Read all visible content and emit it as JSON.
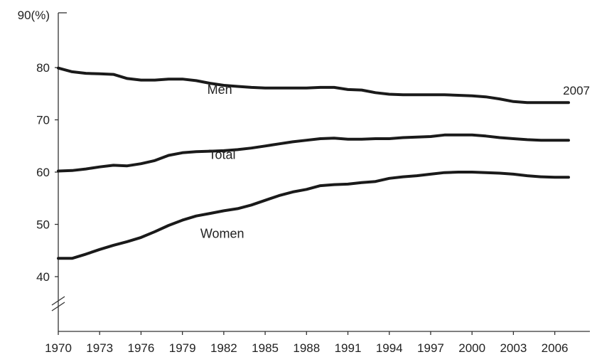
{
  "chart_data": {
    "type": "line",
    "ylabel": "90(%)",
    "ylim": [
      40,
      90
    ],
    "yticks": [
      40,
      50,
      60,
      70,
      80
    ],
    "xlim": [
      1970,
      2007
    ],
    "xticks": [
      "1970",
      "1973",
      "1976",
      "1979",
      "1982",
      "1985",
      "1988",
      "1991",
      "1994",
      "1997",
      "2000",
      "2003",
      "2006"
    ],
    "end_annotation": "2007",
    "grid": false,
    "x": [
      1970,
      1971,
      1972,
      1973,
      1974,
      1975,
      1976,
      1977,
      1978,
      1979,
      1980,
      1981,
      1982,
      1983,
      1984,
      1985,
      1986,
      1987,
      1988,
      1989,
      1990,
      1991,
      1992,
      1993,
      1994,
      1995,
      1996,
      1997,
      1998,
      1999,
      2000,
      2001,
      2002,
      2003,
      2004,
      2005,
      2006,
      2007
    ],
    "series": [
      {
        "name": "Men",
        "values": [
          79.9,
          79.2,
          78.9,
          78.8,
          78.7,
          77.9,
          77.6,
          77.6,
          77.8,
          77.8,
          77.5,
          77.0,
          76.6,
          76.4,
          76.2,
          76.1,
          76.1,
          76.1,
          76.1,
          76.2,
          76.2,
          75.8,
          75.7,
          75.2,
          74.9,
          74.8,
          74.8,
          74.8,
          74.8,
          74.7,
          74.6,
          74.4,
          74.0,
          73.5,
          73.3,
          73.3,
          73.3,
          73.3
        ]
      },
      {
        "name": "Total",
        "values": [
          60.2,
          60.3,
          60.6,
          61.0,
          61.3,
          61.2,
          61.6,
          62.2,
          63.2,
          63.7,
          63.9,
          64.0,
          64.1,
          64.3,
          64.6,
          65.0,
          65.4,
          65.8,
          66.1,
          66.4,
          66.5,
          66.3,
          66.3,
          66.4,
          66.4,
          66.6,
          66.7,
          66.8,
          67.1,
          67.1,
          67.1,
          66.9,
          66.6,
          66.4,
          66.2,
          66.1,
          66.1,
          66.1
        ]
      },
      {
        "name": "Women",
        "values": [
          43.5,
          43.5,
          44.3,
          45.2,
          46.0,
          46.7,
          47.5,
          48.6,
          49.8,
          50.8,
          51.6,
          52.1,
          52.6,
          53.0,
          53.7,
          54.6,
          55.5,
          56.2,
          56.7,
          57.4,
          57.6,
          57.7,
          58.0,
          58.2,
          58.8,
          59.1,
          59.3,
          59.6,
          59.9,
          60.0,
          60.0,
          59.9,
          59.8,
          59.6,
          59.3,
          59.1,
          59.0,
          59.0
        ]
      }
    ]
  }
}
